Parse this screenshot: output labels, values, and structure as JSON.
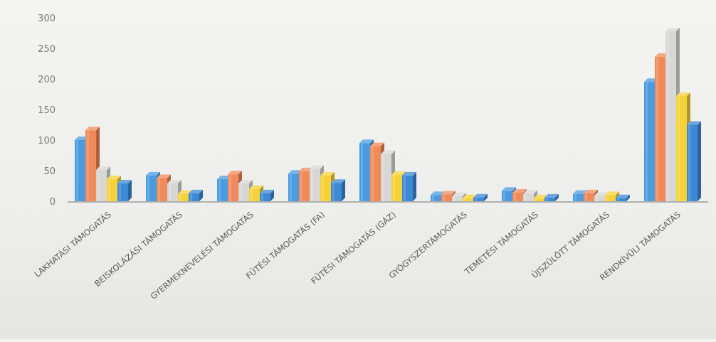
{
  "chart_data": {
    "type": "bar",
    "title": "",
    "xlabel": "",
    "ylabel": "",
    "ylim": [
      0,
      300
    ],
    "yticks": [
      0,
      50,
      100,
      150,
      200,
      250,
      300
    ],
    "categories": [
      "LAKHATÁSI TÁMOGATÁS",
      "BEISKOLÁZÁSI TÁMOGATÁS",
      "GYERMEKNEVELÉSI TÁMOGATÁS",
      "FŰTÉSI TÁMOGATÁS (FA)",
      "FŰTÉSI TÁMOGATÁS (GÁZ)",
      "GYÓGYSZERTÁMOGATÁS",
      "TEMETÉSI TÁMOGATÁS",
      "ÚJSZÜLÖTT TÁMOGATÁS",
      "RENDKÍVÜLI TÁMOGATÁS"
    ],
    "series": [
      {
        "color": "#4a9be0",
        "values": [
          100,
          42,
          36,
          45,
          95,
          10,
          17,
          12,
          195
        ]
      },
      {
        "color": "#f08a5a",
        "values": [
          116,
          38,
          44,
          49,
          90,
          11,
          14,
          13,
          236
        ]
      },
      {
        "color": "#d7d7d5",
        "values": [
          51,
          29,
          29,
          53,
          77,
          8,
          12,
          9,
          278
        ]
      },
      {
        "color": "#f5d23a",
        "values": [
          36,
          12,
          20,
          42,
          43,
          5,
          5,
          10,
          172
        ]
      },
      {
        "color": "#3d89d6",
        "values": [
          29,
          13,
          13,
          30,
          42,
          6,
          6,
          5,
          125
        ]
      }
    ],
    "grid": false,
    "legend": "none"
  }
}
